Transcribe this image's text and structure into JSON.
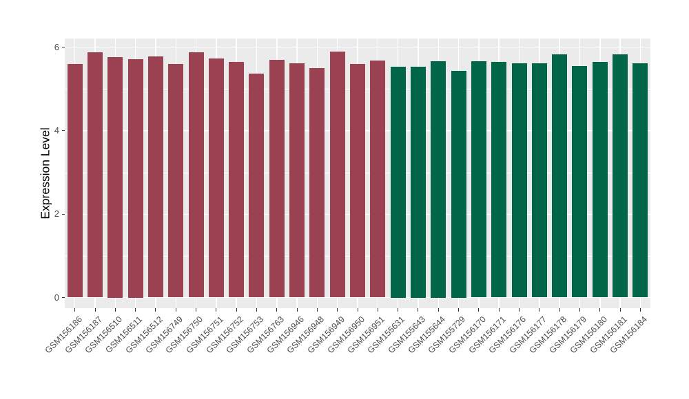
{
  "chart_data": {
    "type": "bar",
    "title": "",
    "xlabel": "",
    "ylabel": "Expression Level",
    "ylim": [
      0,
      6.2
    ],
    "yticks": [
      0,
      2,
      4,
      6
    ],
    "yticks_minor": [
      1,
      3,
      5
    ],
    "grid": true,
    "legend": false,
    "panel_background": "#EBEBEB",
    "gridline_color": "#FFFFFF",
    "tick_color": "#333333",
    "group_colors": {
      "red": "#9A4252",
      "green": "#006647"
    },
    "bars": [
      {
        "label": "GSM156186",
        "value": 5.59,
        "group": "red"
      },
      {
        "label": "GSM156187",
        "value": 5.87,
        "group": "red"
      },
      {
        "label": "GSM156510",
        "value": 5.77,
        "group": "red"
      },
      {
        "label": "GSM156511",
        "value": 5.72,
        "group": "red"
      },
      {
        "label": "GSM156512",
        "value": 5.78,
        "group": "red"
      },
      {
        "label": "GSM156749",
        "value": 5.6,
        "group": "red"
      },
      {
        "label": "GSM156750",
        "value": 5.87,
        "group": "red"
      },
      {
        "label": "GSM156751",
        "value": 5.73,
        "group": "red"
      },
      {
        "label": "GSM156752",
        "value": 5.65,
        "group": "red"
      },
      {
        "label": "GSM156753",
        "value": 5.37,
        "group": "red"
      },
      {
        "label": "GSM156763",
        "value": 5.7,
        "group": "red"
      },
      {
        "label": "GSM156946",
        "value": 5.61,
        "group": "red"
      },
      {
        "label": "GSM156948",
        "value": 5.49,
        "group": "red"
      },
      {
        "label": "GSM156949",
        "value": 5.9,
        "group": "red"
      },
      {
        "label": "GSM156950",
        "value": 5.6,
        "group": "red"
      },
      {
        "label": "GSM156951",
        "value": 5.68,
        "group": "red"
      },
      {
        "label": "GSM155631",
        "value": 5.53,
        "group": "green"
      },
      {
        "label": "GSM155643",
        "value": 5.53,
        "group": "green"
      },
      {
        "label": "GSM155644",
        "value": 5.67,
        "group": "green"
      },
      {
        "label": "GSM155729",
        "value": 5.44,
        "group": "green"
      },
      {
        "label": "GSM156170",
        "value": 5.66,
        "group": "green"
      },
      {
        "label": "GSM156171",
        "value": 5.65,
        "group": "green"
      },
      {
        "label": "GSM156176",
        "value": 5.61,
        "group": "green"
      },
      {
        "label": "GSM156177",
        "value": 5.62,
        "group": "green"
      },
      {
        "label": "GSM156178",
        "value": 5.83,
        "group": "green"
      },
      {
        "label": "GSM156179",
        "value": 5.55,
        "group": "green"
      },
      {
        "label": "GSM156180",
        "value": 5.65,
        "group": "green"
      },
      {
        "label": "GSM156181",
        "value": 5.83,
        "group": "green"
      },
      {
        "label": "GSM156184",
        "value": 5.61,
        "group": "green"
      }
    ]
  }
}
